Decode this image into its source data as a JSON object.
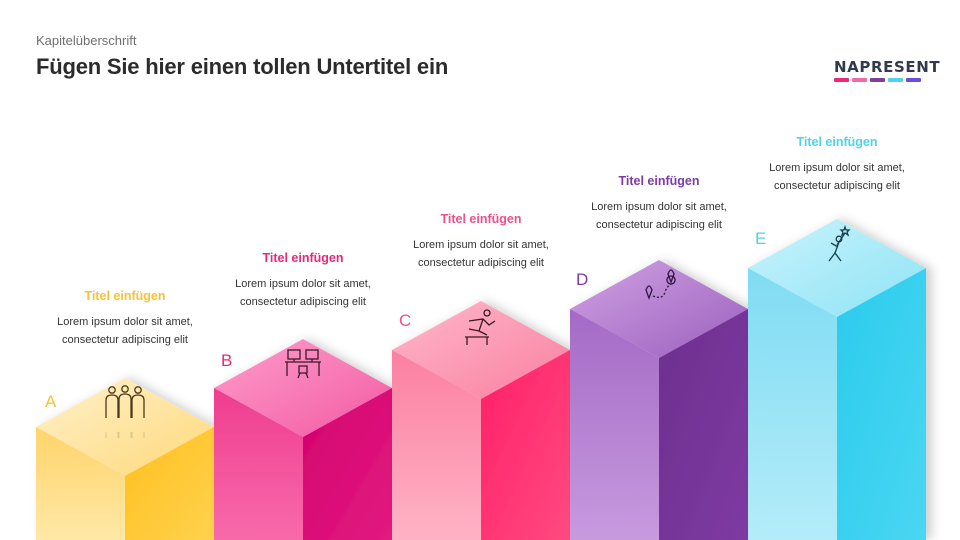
{
  "header": {
    "kicker": "Kapitelüberschrift",
    "title": "Fügen Sie hier einen tollen Untertitel ein"
  },
  "logo": {
    "text": "NAPRESENT",
    "bar_colors": [
      "#e8287a",
      "#f06aa6",
      "#7b3fa0",
      "#4fd3ec",
      "#6a4fd6"
    ]
  },
  "columns": [
    {
      "letter": "A",
      "title": "Titel einfügen",
      "body": "Lorem ipsum dolor sit amet, consectetur adipiscing elit",
      "icon": "team-icon",
      "color": "#fdc12e"
    },
    {
      "letter": "B",
      "title": "Titel einfügen",
      "body": "Lorem ipsum dolor sit amet, consectetur adipiscing elit",
      "icon": "workspace-icon",
      "color": "#ea2e7f"
    },
    {
      "letter": "C",
      "title": "Titel einfügen",
      "body": "Lorem ipsum dolor sit amet, consectetur adipiscing elit",
      "icon": "hurdle-runner-icon",
      "color": "#f34d85"
    },
    {
      "letter": "D",
      "title": "Titel einfügen",
      "body": "Lorem ipsum dolor sit amet, consectetur adipiscing elit",
      "icon": "route-pins-icon",
      "color": "#7e3ba6"
    },
    {
      "letter": "E",
      "title": "Titel einfügen",
      "body": "Lorem ipsum dolor sit amet, consectetur adipiscing elit",
      "icon": "goal-reach-icon",
      "color": "#3fd0ee"
    }
  ]
}
